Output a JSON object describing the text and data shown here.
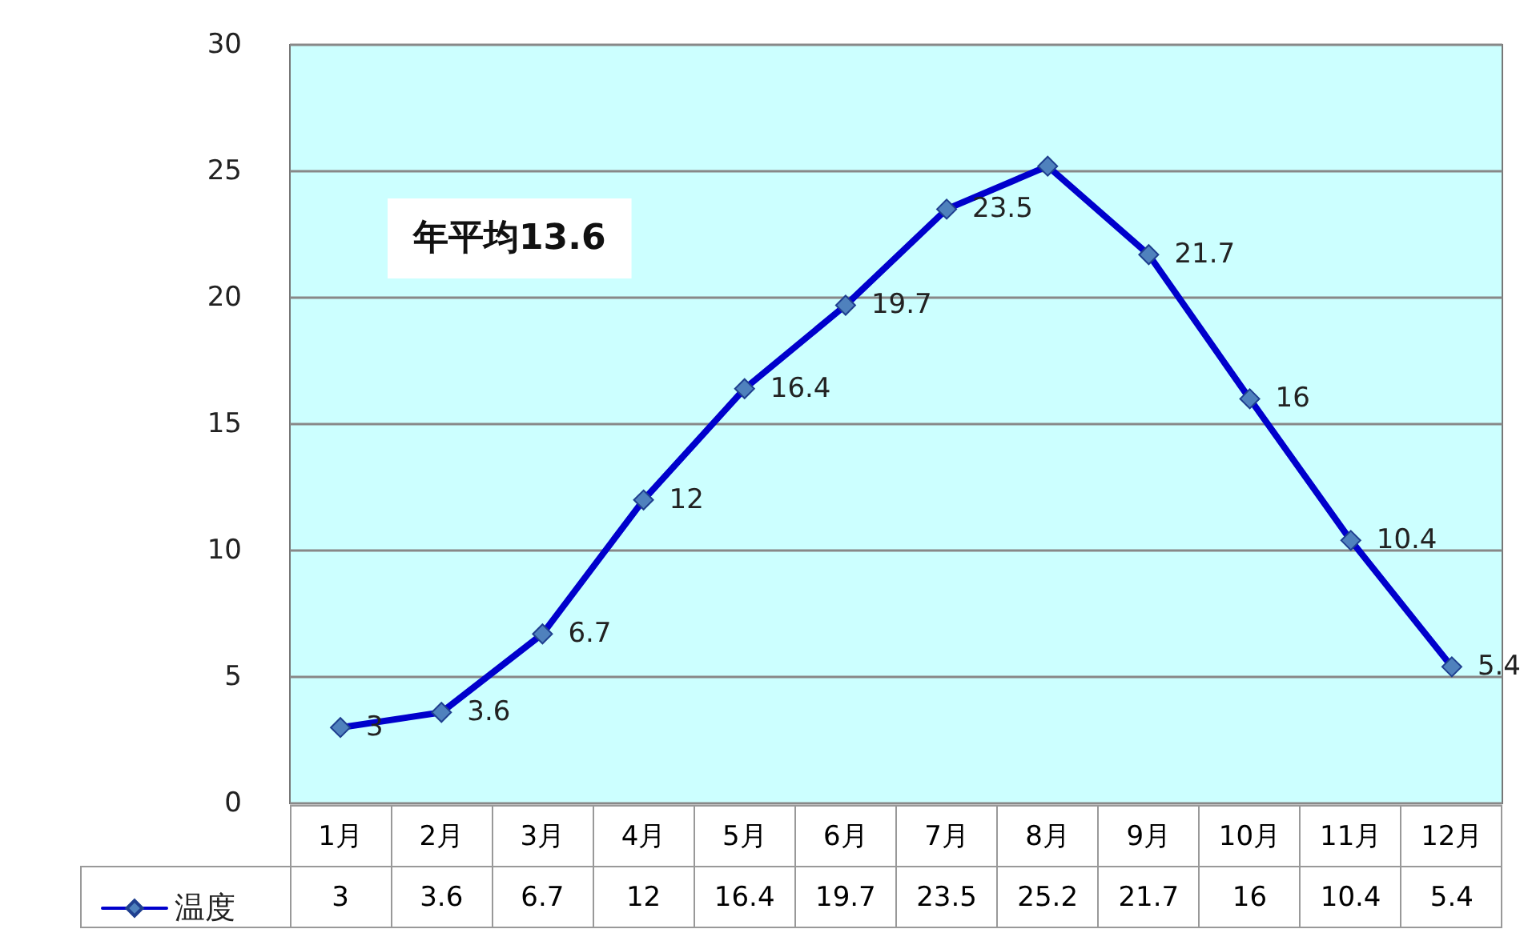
{
  "chart_data": {
    "type": "line",
    "categories": [
      "1月",
      "2月",
      "3月",
      "4月",
      "5月",
      "6月",
      "7月",
      "8月",
      "9月",
      "10月",
      "11月",
      "12月"
    ],
    "series": [
      {
        "name": "温度",
        "color": "#0000cc",
        "values": [
          3,
          3.6,
          6.7,
          12,
          16.4,
          19.7,
          23.5,
          25.2,
          21.7,
          16,
          10.4,
          5.4
        ]
      }
    ],
    "ylim": [
      0,
      30
    ],
    "yticks": [
      0,
      5,
      10,
      15,
      20,
      25,
      30
    ],
    "grid": "y",
    "legend": "bottom left",
    "marker": "diamond",
    "line_style": "solid",
    "data_labels": true,
    "annotations": [
      "年平均13.6",
      {
        "text": "3",
        "x": "1月",
        "y": 3
      },
      {
        "text": "3.6",
        "x": "2月",
        "y": 3.6
      },
      {
        "text": "6.7",
        "x": "3月",
        "y": 6.7
      },
      {
        "text": "12",
        "x": "4月",
        "y": 12
      },
      {
        "text": "16.4",
        "x": "5月",
        "y": 16.4
      },
      {
        "text": "19.7",
        "x": "6月",
        "y": 19.7
      },
      {
        "text": "23.5",
        "x": "7月",
        "y": 23.5
      },
      {
        "text": "21.7",
        "x": "9月",
        "y": 21.7
      },
      {
        "text": "16",
        "x": "10月",
        "y": 16
      },
      {
        "text": "10.4",
        "x": "11月",
        "y": 10.4
      },
      {
        "text": "5.4",
        "x": "12月",
        "y": 5.4
      }
    ]
  }
}
